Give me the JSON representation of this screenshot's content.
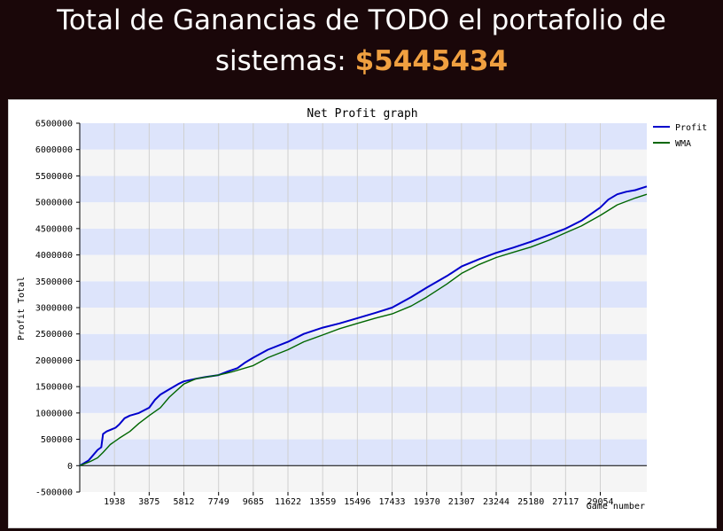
{
  "header": {
    "title_line1": "Total de Ganancias de TODO el portafolio de",
    "title_line2_prefix": "sistemas: ",
    "amount": "$5445434"
  },
  "colors": {
    "amount": "#f0a040",
    "profit": "#0000cc",
    "wma": "#006600",
    "band": "#dde4fb",
    "band_alt": "#f5f5f5"
  },
  "chart_data": {
    "type": "line",
    "title": "Net Profit graph",
    "xlabel": "Game number",
    "ylabel": "Profit Total",
    "xlim": [
      0,
      31650
    ],
    "ylim": [
      -500000,
      6500000
    ],
    "x_ticks": [
      1938,
      3875,
      5812,
      7749,
      9685,
      11622,
      13559,
      15496,
      17433,
      19370,
      21307,
      23244,
      25180,
      27117,
      29054
    ],
    "x_tick_labels": [
      "1938",
      "3875",
      "5812",
      "7749",
      "9685",
      "11622",
      "13559",
      "15496",
      "17433",
      "19370",
      "21307",
      "23244",
      "25180",
      "27117",
      "29054"
    ],
    "y_ticks": [
      -500000,
      0,
      500000,
      1000000,
      1500000,
      2000000,
      2500000,
      3000000,
      3500000,
      4000000,
      4500000,
      5000000,
      5500000,
      6000000,
      6500000
    ],
    "y_tick_labels": [
      "-500000",
      "0",
      "500000",
      "1000000",
      "1500000",
      "2000000",
      "2500000",
      "3000000",
      "3500000",
      "4000000",
      "4500000",
      "5000000",
      "5500000",
      "6000000",
      "6500000"
    ],
    "legend_position": "top-right",
    "grid": true,
    "series": [
      {
        "name": "Profit",
        "color": "#0000cc",
        "x": [
          0,
          500,
          1000,
          1200,
          1300,
          1500,
          2000,
          2200,
          2500,
          2800,
          3300,
          3875,
          4200,
          4500,
          5000,
          5500,
          5812,
          6500,
          7000,
          7749,
          8200,
          8800,
          9200,
          9685,
          10500,
          11622,
          12500,
          13559,
          14500,
          15496,
          16500,
          17433,
          18500,
          19370,
          20500,
          21307,
          22300,
          23244,
          24200,
          25180,
          26200,
          27117,
          28000,
          29054,
          29500,
          30000,
          30500,
          31000,
          31650
        ],
        "values": [
          0,
          100000,
          300000,
          350000,
          600000,
          650000,
          720000,
          780000,
          900000,
          950000,
          1000000,
          1100000,
          1250000,
          1350000,
          1450000,
          1550000,
          1600000,
          1650000,
          1680000,
          1720000,
          1780000,
          1850000,
          1950000,
          2050000,
          2200000,
          2350000,
          2500000,
          2620000,
          2700000,
          2800000,
          2900000,
          3000000,
          3200000,
          3380000,
          3600000,
          3780000,
          3920000,
          4040000,
          4140000,
          4250000,
          4380000,
          4500000,
          4650000,
          4900000,
          5050000,
          5150000,
          5200000,
          5230000,
          5300000
        ]
      },
      {
        "name": "WMA",
        "color": "#006600",
        "x": [
          0,
          600,
          1000,
          1300,
          1700,
          2200,
          2800,
          3300,
          3875,
          4500,
          5000,
          5812,
          6500,
          7749,
          8500,
          9685,
          10500,
          11622,
          12500,
          13559,
          14500,
          15496,
          16500,
          17433,
          18500,
          19370,
          20500,
          21307,
          22300,
          23244,
          24200,
          25180,
          26200,
          27117,
          28000,
          29054,
          30000,
          31000,
          31650
        ],
        "values": [
          0,
          80000,
          150000,
          250000,
          400000,
          520000,
          650000,
          800000,
          950000,
          1100000,
          1300000,
          1550000,
          1650000,
          1720000,
          1780000,
          1900000,
          2050000,
          2200000,
          2350000,
          2480000,
          2600000,
          2700000,
          2800000,
          2880000,
          3030000,
          3200000,
          3450000,
          3650000,
          3820000,
          3950000,
          4050000,
          4150000,
          4280000,
          4420000,
          4550000,
          4750000,
          4950000,
          5080000,
          5150000
        ]
      }
    ]
  }
}
